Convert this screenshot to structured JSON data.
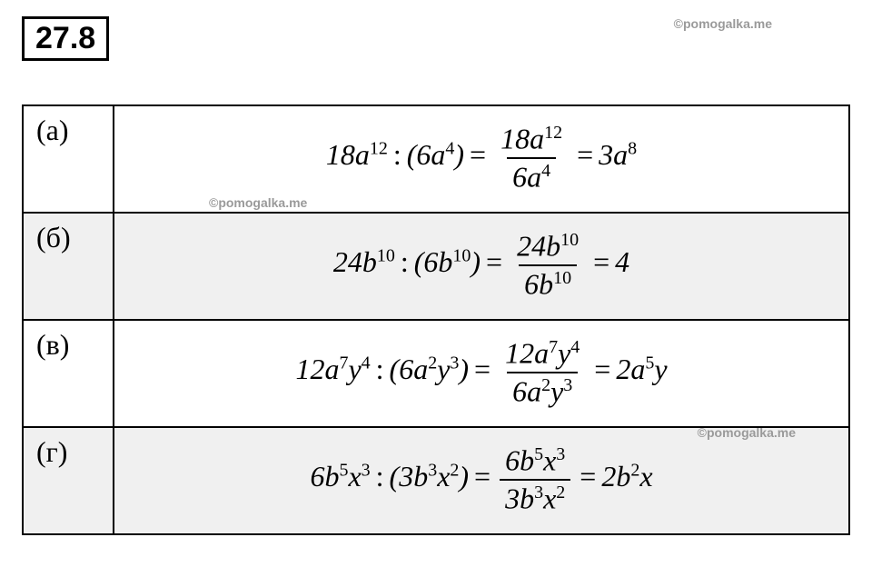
{
  "problem_number": "27.8",
  "watermarks": {
    "text": "©pomogalka.me"
  },
  "table": {
    "border_color": "#000000",
    "shaded_bg": "#f0f0f0",
    "plain_bg": "#ffffff",
    "font_size_label": 32,
    "font_size_content": 32,
    "rows": [
      {
        "label": "(а)",
        "shaded": false,
        "lhs_coef": "18",
        "lhs_var": "a",
        "lhs_exp": "12",
        "div_coef": "6",
        "div_var": "a",
        "div_exp": "4",
        "frac_num": "18a^{12}",
        "frac_den": "6a^{4}",
        "result": "3a^{8}"
      },
      {
        "label": "(б)",
        "shaded": true,
        "lhs_coef": "24",
        "lhs_var": "b",
        "lhs_exp": "10",
        "div_coef": "6",
        "div_var": "b",
        "div_exp": "10",
        "frac_num": "24b^{10}",
        "frac_den": "6b^{10}",
        "result": "4"
      },
      {
        "label": "(в)",
        "shaded": false,
        "lhs": "12a^{7}y^{4}",
        "div": "6a^{2}y^{3}",
        "frac_num": "12a^{7}y^{4}",
        "frac_den": "6a^{2}y^{3}",
        "result": "2a^{5}y"
      },
      {
        "label": "(г)",
        "shaded": true,
        "lhs": "6b^{5}x^{3}",
        "div": "3b^{3}x^{2}",
        "frac_num": "6b^{5}x^{3}",
        "frac_den": "3b^{3}x^{2}",
        "result": "2b^{2}x"
      }
    ]
  }
}
